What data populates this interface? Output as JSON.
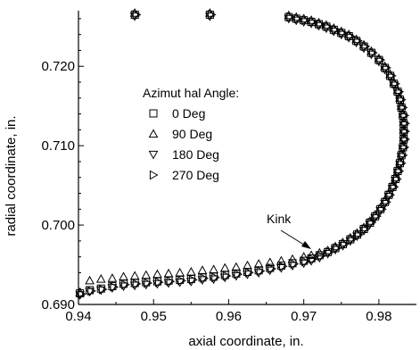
{
  "chart_data": {
    "type": "scatter",
    "xlabel": "axial coordinate, in.",
    "ylabel": "radial coordinate, in.",
    "xlim": [
      0.94,
      0.985
    ],
    "ylim": [
      0.69,
      0.727
    ],
    "x_ticks": [
      0.94,
      0.95,
      0.96,
      0.97,
      0.98
    ],
    "x_tick_labels": [
      "0.94",
      "0.95",
      "0.96",
      "0.97",
      "0.98"
    ],
    "y_ticks": [
      0.69,
      0.7,
      0.71,
      0.72
    ],
    "y_tick_labels": [
      "0.690",
      "0.700",
      "0.710",
      "0.720"
    ],
    "grid": false,
    "legend": {
      "title": "Azimut hal Angle:",
      "position": "upper-left-center"
    },
    "annotations": [
      {
        "text": "Kink",
        "x": 0.9705,
        "y": 0.6962
      }
    ],
    "series": [
      {
        "name": "0 Deg",
        "marker": "square",
        "points": [
          [
            0.9475,
            0.7265
          ],
          [
            0.9575,
            0.7265
          ],
          [
            0.968,
            0.7262
          ],
          [
            0.969,
            0.726
          ],
          [
            0.97,
            0.7258
          ],
          [
            0.971,
            0.7256
          ],
          [
            0.972,
            0.7253
          ],
          [
            0.973,
            0.725
          ],
          [
            0.974,
            0.7246
          ],
          [
            0.975,
            0.7242
          ],
          [
            0.976,
            0.7238
          ],
          [
            0.977,
            0.7232
          ],
          [
            0.978,
            0.7225
          ],
          [
            0.979,
            0.7217
          ],
          [
            0.98,
            0.7208
          ],
          [
            0.9808,
            0.7198
          ],
          [
            0.9815,
            0.7188
          ],
          [
            0.982,
            0.7178
          ],
          [
            0.9825,
            0.7168
          ],
          [
            0.9828,
            0.7158
          ],
          [
            0.983,
            0.7148
          ],
          [
            0.9832,
            0.7138
          ],
          [
            0.9833,
            0.7128
          ],
          [
            0.9833,
            0.7118
          ],
          [
            0.9833,
            0.7108
          ],
          [
            0.9832,
            0.7098
          ],
          [
            0.983,
            0.7088
          ],
          [
            0.9828,
            0.7078
          ],
          [
            0.9825,
            0.7068
          ],
          [
            0.9822,
            0.7058
          ],
          [
            0.9818,
            0.7048
          ],
          [
            0.9813,
            0.7038
          ],
          [
            0.9808,
            0.7029
          ],
          [
            0.9802,
            0.702
          ],
          [
            0.9795,
            0.7011
          ],
          [
            0.9788,
            0.7003
          ],
          [
            0.978,
            0.6995
          ],
          [
            0.9771,
            0.6988
          ],
          [
            0.9762,
            0.6982
          ],
          [
            0.9752,
            0.6976
          ],
          [
            0.9742,
            0.6971
          ],
          [
            0.9732,
            0.6966
          ],
          [
            0.9721,
            0.6962
          ],
          [
            0.971,
            0.6958
          ],
          [
            0.97,
            0.6955
          ],
          [
            0.9685,
            0.6952
          ],
          [
            0.967,
            0.6949
          ],
          [
            0.9655,
            0.6946
          ],
          [
            0.964,
            0.6943
          ],
          [
            0.9625,
            0.6941
          ],
          [
            0.961,
            0.6939
          ],
          [
            0.9595,
            0.6937
          ],
          [
            0.958,
            0.6935
          ],
          [
            0.9565,
            0.6934
          ],
          [
            0.955,
            0.6932
          ],
          [
            0.9535,
            0.6931
          ],
          [
            0.952,
            0.693
          ],
          [
            0.9505,
            0.6929
          ],
          [
            0.949,
            0.6928
          ],
          [
            0.9475,
            0.6927
          ],
          [
            0.946,
            0.6926
          ],
          [
            0.9445,
            0.6923
          ],
          [
            0.943,
            0.692
          ],
          [
            0.9415,
            0.6918
          ],
          [
            0.9402,
            0.6914
          ]
        ]
      },
      {
        "name": "90 Deg",
        "marker": "triangle-up",
        "points": [
          [
            0.9475,
            0.7267
          ],
          [
            0.9575,
            0.7267
          ],
          [
            0.968,
            0.7264
          ],
          [
            0.969,
            0.7262
          ],
          [
            0.97,
            0.726
          ],
          [
            0.971,
            0.7258
          ],
          [
            0.972,
            0.7255
          ],
          [
            0.973,
            0.7252
          ],
          [
            0.974,
            0.7248
          ],
          [
            0.975,
            0.7244
          ],
          [
            0.976,
            0.724
          ],
          [
            0.977,
            0.7234
          ],
          [
            0.978,
            0.7227
          ],
          [
            0.979,
            0.7219
          ],
          [
            0.98,
            0.721
          ],
          [
            0.9808,
            0.72
          ],
          [
            0.9815,
            0.719
          ],
          [
            0.982,
            0.718
          ],
          [
            0.9825,
            0.717
          ],
          [
            0.9828,
            0.716
          ],
          [
            0.983,
            0.715
          ],
          [
            0.9832,
            0.714
          ],
          [
            0.9833,
            0.713
          ],
          [
            0.9833,
            0.712
          ],
          [
            0.9833,
            0.711
          ],
          [
            0.9832,
            0.71
          ],
          [
            0.983,
            0.709
          ],
          [
            0.9828,
            0.708
          ],
          [
            0.9825,
            0.707
          ],
          [
            0.9822,
            0.706
          ],
          [
            0.9818,
            0.705
          ],
          [
            0.9813,
            0.704
          ],
          [
            0.9808,
            0.7031
          ],
          [
            0.9802,
            0.7022
          ],
          [
            0.9795,
            0.7013
          ],
          [
            0.9788,
            0.7005
          ],
          [
            0.978,
            0.6997
          ],
          [
            0.9771,
            0.699
          ],
          [
            0.9762,
            0.6984
          ],
          [
            0.9752,
            0.6978
          ],
          [
            0.9742,
            0.6973
          ],
          [
            0.9732,
            0.6968
          ],
          [
            0.9721,
            0.6965
          ],
          [
            0.971,
            0.6962
          ],
          [
            0.97,
            0.696
          ],
          [
            0.9685,
            0.6957
          ],
          [
            0.967,
            0.6955
          ],
          [
            0.9655,
            0.6953
          ],
          [
            0.964,
            0.6951
          ],
          [
            0.9625,
            0.6949
          ],
          [
            0.961,
            0.6947
          ],
          [
            0.9595,
            0.6946
          ],
          [
            0.958,
            0.6944
          ],
          [
            0.9565,
            0.6943
          ],
          [
            0.955,
            0.6941
          ],
          [
            0.9535,
            0.694
          ],
          [
            0.952,
            0.6939
          ],
          [
            0.9505,
            0.6938
          ],
          [
            0.949,
            0.6937
          ],
          [
            0.9475,
            0.6936
          ],
          [
            0.946,
            0.6935
          ],
          [
            0.9445,
            0.6933
          ],
          [
            0.943,
            0.6932
          ],
          [
            0.9415,
            0.693
          ],
          [
            0.9402,
            0.6915
          ]
        ]
      },
      {
        "name": "180 Deg",
        "marker": "triangle-down",
        "points": [
          [
            0.9475,
            0.7263
          ],
          [
            0.9575,
            0.7263
          ],
          [
            0.968,
            0.726
          ],
          [
            0.969,
            0.7258
          ],
          [
            0.97,
            0.7256
          ],
          [
            0.971,
            0.7254
          ],
          [
            0.972,
            0.7251
          ],
          [
            0.973,
            0.7248
          ],
          [
            0.974,
            0.7244
          ],
          [
            0.975,
            0.724
          ],
          [
            0.976,
            0.7236
          ],
          [
            0.977,
            0.723
          ],
          [
            0.978,
            0.7223
          ],
          [
            0.979,
            0.7215
          ],
          [
            0.98,
            0.7206
          ],
          [
            0.9808,
            0.7196
          ],
          [
            0.9815,
            0.7186
          ],
          [
            0.982,
            0.7176
          ],
          [
            0.9825,
            0.7166
          ],
          [
            0.9828,
            0.7156
          ],
          [
            0.983,
            0.7146
          ],
          [
            0.9832,
            0.7136
          ],
          [
            0.9833,
            0.7126
          ],
          [
            0.9833,
            0.7116
          ],
          [
            0.9833,
            0.7106
          ],
          [
            0.9832,
            0.7096
          ],
          [
            0.983,
            0.7086
          ],
          [
            0.9828,
            0.7076
          ],
          [
            0.9825,
            0.7066
          ],
          [
            0.9822,
            0.7056
          ],
          [
            0.9818,
            0.7046
          ],
          [
            0.9813,
            0.7036
          ],
          [
            0.9808,
            0.7027
          ],
          [
            0.9802,
            0.7018
          ],
          [
            0.9795,
            0.7009
          ],
          [
            0.9788,
            0.7001
          ],
          [
            0.978,
            0.6993
          ],
          [
            0.9771,
            0.6986
          ],
          [
            0.9762,
            0.698
          ],
          [
            0.9752,
            0.6974
          ],
          [
            0.9742,
            0.6969
          ],
          [
            0.9732,
            0.6964
          ],
          [
            0.9721,
            0.6959
          ],
          [
            0.971,
            0.6955
          ],
          [
            0.97,
            0.6952
          ],
          [
            0.9685,
            0.6949
          ],
          [
            0.967,
            0.6946
          ],
          [
            0.9655,
            0.6943
          ],
          [
            0.964,
            0.694
          ],
          [
            0.9625,
            0.6938
          ],
          [
            0.961,
            0.6936
          ],
          [
            0.9595,
            0.6934
          ],
          [
            0.958,
            0.6932
          ],
          [
            0.9565,
            0.6931
          ],
          [
            0.955,
            0.6929
          ],
          [
            0.9535,
            0.6928
          ],
          [
            0.952,
            0.6927
          ],
          [
            0.9505,
            0.6926
          ],
          [
            0.949,
            0.6925
          ],
          [
            0.9475,
            0.6924
          ],
          [
            0.946,
            0.6923
          ],
          [
            0.9445,
            0.6921
          ],
          [
            0.943,
            0.6918
          ],
          [
            0.9415,
            0.6916
          ],
          [
            0.9402,
            0.6912
          ]
        ]
      },
      {
        "name": "270 Deg",
        "marker": "triangle-right",
        "points": [
          [
            0.9477,
            0.7265
          ],
          [
            0.9577,
            0.7265
          ],
          [
            0.9682,
            0.7262
          ],
          [
            0.9692,
            0.726
          ],
          [
            0.9702,
            0.7258
          ],
          [
            0.9712,
            0.7256
          ],
          [
            0.9722,
            0.7253
          ],
          [
            0.9732,
            0.725
          ],
          [
            0.9742,
            0.7246
          ],
          [
            0.9752,
            0.7242
          ],
          [
            0.9762,
            0.7238
          ],
          [
            0.9772,
            0.7232
          ],
          [
            0.9782,
            0.7225
          ],
          [
            0.9792,
            0.7217
          ],
          [
            0.9802,
            0.7208
          ],
          [
            0.981,
            0.7198
          ],
          [
            0.9817,
            0.7188
          ],
          [
            0.9822,
            0.7178
          ],
          [
            0.9827,
            0.7168
          ],
          [
            0.983,
            0.7158
          ],
          [
            0.9832,
            0.7148
          ],
          [
            0.9834,
            0.7138
          ],
          [
            0.9835,
            0.7128
          ],
          [
            0.9835,
            0.7118
          ],
          [
            0.9835,
            0.7108
          ],
          [
            0.9834,
            0.7098
          ],
          [
            0.9832,
            0.7088
          ],
          [
            0.983,
            0.7078
          ],
          [
            0.9827,
            0.7068
          ],
          [
            0.9824,
            0.7058
          ],
          [
            0.982,
            0.7048
          ],
          [
            0.9815,
            0.7038
          ],
          [
            0.981,
            0.7029
          ],
          [
            0.9804,
            0.702
          ],
          [
            0.9797,
            0.7011
          ],
          [
            0.979,
            0.7003
          ],
          [
            0.9782,
            0.6995
          ],
          [
            0.9773,
            0.6988
          ],
          [
            0.9764,
            0.6982
          ],
          [
            0.9754,
            0.6976
          ],
          [
            0.9744,
            0.6971
          ],
          [
            0.9734,
            0.6966
          ],
          [
            0.9723,
            0.6961
          ],
          [
            0.9712,
            0.6957
          ],
          [
            0.9702,
            0.6954
          ],
          [
            0.9687,
            0.6951
          ],
          [
            0.9672,
            0.6948
          ],
          [
            0.9657,
            0.6945
          ],
          [
            0.9642,
            0.6942
          ],
          [
            0.9627,
            0.694
          ],
          [
            0.9612,
            0.6938
          ],
          [
            0.9597,
            0.6936
          ],
          [
            0.9582,
            0.6934
          ],
          [
            0.9567,
            0.6933
          ],
          [
            0.9552,
            0.6931
          ],
          [
            0.9537,
            0.693
          ],
          [
            0.9522,
            0.6929
          ],
          [
            0.9507,
            0.6928
          ],
          [
            0.9492,
            0.6927
          ],
          [
            0.9477,
            0.6926
          ],
          [
            0.9462,
            0.6925
          ],
          [
            0.9447,
            0.6922
          ],
          [
            0.9432,
            0.6919
          ],
          [
            0.9417,
            0.6917
          ],
          [
            0.9404,
            0.6913
          ]
        ]
      }
    ]
  }
}
